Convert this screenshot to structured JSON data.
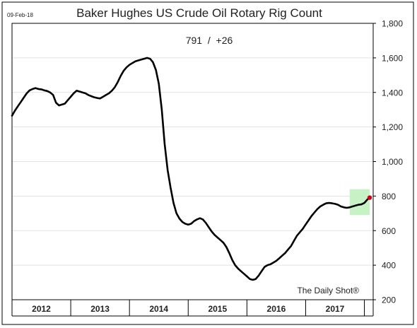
{
  "date_label": "09-Feb-18",
  "watermark": "The Daily Shot®",
  "chart_data": {
    "type": "line",
    "title": "Baker Hughes US Crude Oil Rotary Rig Count",
    "subtitle": "791  /  +26",
    "xlabel": "",
    "ylabel": "",
    "ylim": [
      200,
      1800
    ],
    "yticks": [
      200,
      400,
      600,
      800,
      1000,
      1200,
      1400,
      1600,
      1800
    ],
    "ytick_labels": [
      "200",
      "400",
      "600",
      "800",
      "1,000",
      "1,200",
      "1,400",
      "1,600",
      "1,800"
    ],
    "year_labels": [
      "2012",
      "2013",
      "2014",
      "2015",
      "2016",
      "2017"
    ],
    "xlim": [
      2012.0,
      2018.15
    ],
    "grid": true,
    "line_color": "#000000",
    "endpoint_color": "#d0021b",
    "highlight_color": "#c6f2c6",
    "highlight_region": {
      "x": [
        2017.75,
        2018.09
      ],
      "y": [
        690,
        840
      ]
    },
    "series": [
      {
        "points": [
          [
            2012.0,
            1265
          ],
          [
            2012.05,
            1295
          ],
          [
            2012.1,
            1320
          ],
          [
            2012.15,
            1345
          ],
          [
            2012.2,
            1370
          ],
          [
            2012.25,
            1395
          ],
          [
            2012.3,
            1412
          ],
          [
            2012.35,
            1420
          ],
          [
            2012.4,
            1425
          ],
          [
            2012.45,
            1420
          ],
          [
            2012.5,
            1418
          ],
          [
            2012.55,
            1412
          ],
          [
            2012.6,
            1408
          ],
          [
            2012.65,
            1400
          ],
          [
            2012.7,
            1385
          ],
          [
            2012.75,
            1340
          ],
          [
            2012.8,
            1325
          ],
          [
            2012.85,
            1330
          ],
          [
            2012.9,
            1335
          ],
          [
            2012.95,
            1355
          ],
          [
            2013.0,
            1375
          ],
          [
            2013.05,
            1395
          ],
          [
            2013.1,
            1410
          ],
          [
            2013.15,
            1405
          ],
          [
            2013.2,
            1400
          ],
          [
            2013.25,
            1395
          ],
          [
            2013.3,
            1385
          ],
          [
            2013.35,
            1378
          ],
          [
            2013.4,
            1372
          ],
          [
            2013.45,
            1368
          ],
          [
            2013.5,
            1365
          ],
          [
            2013.55,
            1375
          ],
          [
            2013.6,
            1385
          ],
          [
            2013.65,
            1395
          ],
          [
            2013.7,
            1410
          ],
          [
            2013.75,
            1430
          ],
          [
            2013.8,
            1460
          ],
          [
            2013.85,
            1495
          ],
          [
            2013.9,
            1525
          ],
          [
            2013.95,
            1545
          ],
          [
            2014.0,
            1560
          ],
          [
            2014.05,
            1570
          ],
          [
            2014.1,
            1580
          ],
          [
            2014.15,
            1585
          ],
          [
            2014.2,
            1590
          ],
          [
            2014.25,
            1595
          ],
          [
            2014.3,
            1600
          ],
          [
            2014.35,
            1595
          ],
          [
            2014.4,
            1575
          ],
          [
            2014.45,
            1530
          ],
          [
            2014.5,
            1450
          ],
          [
            2014.55,
            1300
          ],
          [
            2014.6,
            1100
          ],
          [
            2014.65,
            950
          ],
          [
            2014.7,
            850
          ],
          [
            2014.75,
            760
          ],
          [
            2014.8,
            700
          ],
          [
            2014.85,
            670
          ],
          [
            2014.9,
            650
          ],
          [
            2014.95,
            640
          ],
          [
            2015.0,
            635
          ],
          [
            2015.05,
            640
          ],
          [
            2015.1,
            655
          ],
          [
            2015.15,
            665
          ],
          [
            2015.2,
            672
          ],
          [
            2015.25,
            665
          ],
          [
            2015.3,
            645
          ],
          [
            2015.35,
            620
          ],
          [
            2015.4,
            595
          ],
          [
            2015.45,
            575
          ],
          [
            2015.5,
            560
          ],
          [
            2015.55,
            545
          ],
          [
            2015.6,
            530
          ],
          [
            2015.65,
            505
          ],
          [
            2015.7,
            470
          ],
          [
            2015.75,
            430
          ],
          [
            2015.8,
            400
          ],
          [
            2015.85,
            380
          ],
          [
            2015.9,
            365
          ],
          [
            2015.95,
            350
          ],
          [
            2016.0,
            335
          ],
          [
            2016.05,
            320
          ],
          [
            2016.1,
            315
          ],
          [
            2016.15,
            320
          ],
          [
            2016.2,
            340
          ],
          [
            2016.25,
            365
          ],
          [
            2016.3,
            390
          ],
          [
            2016.35,
            400
          ],
          [
            2016.4,
            405
          ],
          [
            2016.45,
            415
          ],
          [
            2016.5,
            425
          ],
          [
            2016.55,
            440
          ],
          [
            2016.6,
            455
          ],
          [
            2016.65,
            470
          ],
          [
            2016.7,
            490
          ],
          [
            2016.75,
            510
          ],
          [
            2016.8,
            540
          ],
          [
            2016.85,
            570
          ],
          [
            2016.9,
            590
          ],
          [
            2016.95,
            610
          ],
          [
            2017.0,
            635
          ],
          [
            2017.05,
            660
          ],
          [
            2017.1,
            685
          ],
          [
            2017.15,
            705
          ],
          [
            2017.2,
            725
          ],
          [
            2017.25,
            740
          ],
          [
            2017.3,
            750
          ],
          [
            2017.35,
            758
          ],
          [
            2017.4,
            760
          ],
          [
            2017.45,
            758
          ],
          [
            2017.5,
            755
          ],
          [
            2017.55,
            750
          ],
          [
            2017.6,
            740
          ],
          [
            2017.65,
            735
          ],
          [
            2017.7,
            732
          ],
          [
            2017.75,
            735
          ],
          [
            2017.8,
            740
          ],
          [
            2017.85,
            745
          ],
          [
            2017.9,
            750
          ],
          [
            2017.95,
            752
          ],
          [
            2018.0,
            760
          ],
          [
            2018.05,
            780
          ],
          [
            2018.09,
            791
          ]
        ]
      }
    ],
    "endpoint": [
      2018.09,
      791
    ]
  }
}
